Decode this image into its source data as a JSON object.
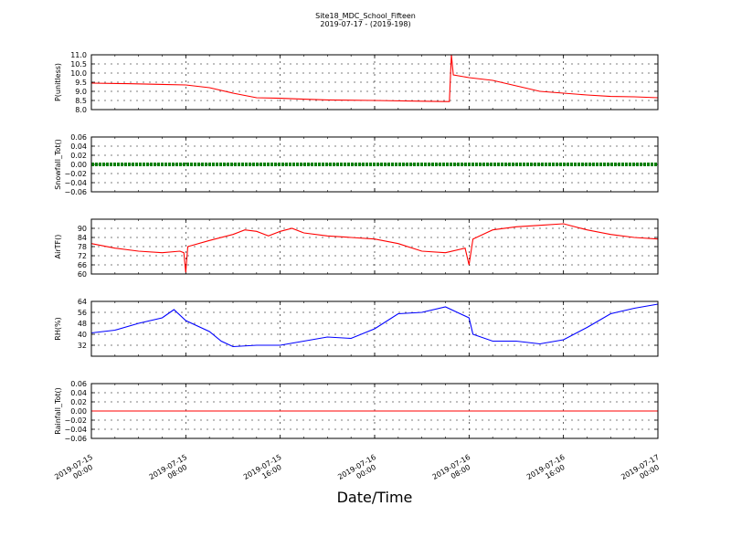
{
  "figure": {
    "title": "Site18_MDC_School_Fifteen",
    "subtitle": "2019-07-17 - (2019-198)",
    "xlabel": "Date/Time"
  },
  "chart_data": {
    "type": "line",
    "x_range": [
      "2019-07-15 00:00",
      "2019-07-17 00:00"
    ],
    "x_ticks": [
      {
        "value": "2019-07-15 00:00",
        "line1": "2019-07-15",
        "line2": "00:00"
      },
      {
        "value": "2019-07-15 08:00",
        "line1": "2019-07-15",
        "line2": "08:00"
      },
      {
        "value": "2019-07-15 16:00",
        "line1": "2019-07-15",
        "line2": "16:00"
      },
      {
        "value": "2019-07-16 00:00",
        "line1": "2019-07-16",
        "line2": "00:00"
      },
      {
        "value": "2019-07-16 08:00",
        "line1": "2019-07-16",
        "line2": "08:00"
      },
      {
        "value": "2019-07-16 16:00",
        "line1": "2019-07-16",
        "line2": "16:00"
      },
      {
        "value": "2019-07-17 00:00",
        "line1": "2019-07-17",
        "line2": "00:00"
      }
    ],
    "grid": true,
    "panels": [
      {
        "ylabel": "P(unitless)",
        "ylim": [
          8.0,
          11.0
        ],
        "yticks": [
          "8.0",
          "8.5",
          "9.0",
          "9.5",
          "10.0",
          "10.5",
          "11.0"
        ],
        "color": "#ff0000",
        "x": [
          "2019-07-15 00:00",
          "2019-07-15 03:00",
          "2019-07-15 06:00",
          "2019-07-15 08:00",
          "2019-07-15 10:00",
          "2019-07-15 12:00",
          "2019-07-15 14:00",
          "2019-07-15 16:00",
          "2019-07-15 18:00",
          "2019-07-15 20:00",
          "2019-07-16 00:00",
          "2019-07-16 04:00",
          "2019-07-16 06:00",
          "2019-07-16 06:20",
          "2019-07-16 06:30",
          "2019-07-16 06:40",
          "2019-07-16 08:00",
          "2019-07-16 10:00",
          "2019-07-16 12:00",
          "2019-07-16 14:00",
          "2019-07-16 16:00",
          "2019-07-16 18:00",
          "2019-07-16 20:00",
          "2019-07-16 22:00",
          "2019-07-17 00:00"
        ],
        "values": [
          9.45,
          9.42,
          9.38,
          9.35,
          9.2,
          8.9,
          8.65,
          8.62,
          8.57,
          8.53,
          8.5,
          8.46,
          8.44,
          8.44,
          11.0,
          9.9,
          9.75,
          9.6,
          9.3,
          9.0,
          8.9,
          8.8,
          8.72,
          8.7,
          8.65
        ]
      },
      {
        "ylabel": "Snowfall_Tot()",
        "ylim": [
          -0.06,
          0.06
        ],
        "yticks": [
          "−0.06",
          "−0.04",
          "−0.02",
          "0.00",
          "0.02",
          "0.04",
          "0.06"
        ],
        "color": "#008000",
        "marker": "dots",
        "x": [
          "2019-07-15 00:00",
          "2019-07-17 00:00"
        ],
        "values": [
          0.0,
          0.0
        ]
      },
      {
        "ylabel": "AirTF()",
        "ylim": [
          60,
          96
        ],
        "yticks": [
          "60",
          "66",
          "72",
          "78",
          "84",
          "90"
        ],
        "color": "#ff0000",
        "x": [
          "2019-07-15 00:00",
          "2019-07-15 02:00",
          "2019-07-15 04:00",
          "2019-07-15 06:00",
          "2019-07-15 07:30",
          "2019-07-15 07:50",
          "2019-07-15 08:00",
          "2019-07-15 08:10",
          "2019-07-15 10:00",
          "2019-07-15 12:00",
          "2019-07-15 13:00",
          "2019-07-15 14:00",
          "2019-07-15 15:00",
          "2019-07-15 16:00",
          "2019-07-15 17:00",
          "2019-07-15 18:00",
          "2019-07-15 20:00",
          "2019-07-15 22:00",
          "2019-07-16 00:00",
          "2019-07-16 02:00",
          "2019-07-16 04:00",
          "2019-07-16 06:00",
          "2019-07-16 07:40",
          "2019-07-16 08:00",
          "2019-07-16 08:20",
          "2019-07-16 10:00",
          "2019-07-16 12:00",
          "2019-07-16 14:00",
          "2019-07-16 16:00",
          "2019-07-16 18:00",
          "2019-07-16 20:00",
          "2019-07-16 22:00",
          "2019-07-17 00:00"
        ],
        "values": [
          80,
          77,
          75,
          74,
          75,
          74,
          61,
          78,
          82,
          86,
          89,
          88,
          85,
          88,
          90,
          87,
          85,
          84,
          83,
          80,
          75,
          74,
          77,
          66,
          83,
          89,
          91,
          92,
          93,
          89,
          86,
          84,
          83
        ]
      },
      {
        "ylabel": "RH(%)",
        "ylim": [
          24,
          64
        ],
        "yticks": [
          "32",
          "40",
          "48",
          "56",
          "64"
        ],
        "color": "#0000ff",
        "x": [
          "2019-07-15 00:00",
          "2019-07-15 02:00",
          "2019-07-15 04:00",
          "2019-07-15 06:00",
          "2019-07-15 07:00",
          "2019-07-15 08:00",
          "2019-07-15 10:00",
          "2019-07-15 11:00",
          "2019-07-15 12:00",
          "2019-07-15 14:00",
          "2019-07-15 16:00",
          "2019-07-15 18:00",
          "2019-07-15 20:00",
          "2019-07-15 22:00",
          "2019-07-16 00:00",
          "2019-07-16 02:00",
          "2019-07-16 04:00",
          "2019-07-16 06:00",
          "2019-07-16 07:00",
          "2019-07-16 08:00",
          "2019-07-16 08:20",
          "2019-07-16 10:00",
          "2019-07-16 12:00",
          "2019-07-16 14:00",
          "2019-07-16 16:00",
          "2019-07-16 18:00",
          "2019-07-16 20:00",
          "2019-07-16 22:00",
          "2019-07-17 00:00"
        ],
        "values": [
          41,
          43,
          48,
          52,
          58,
          50,
          42,
          35,
          31,
          32,
          32,
          35,
          38,
          37,
          44,
          55,
          56,
          60,
          56,
          52,
          40,
          35,
          35,
          33,
          36,
          45,
          55,
          59,
          62
        ]
      },
      {
        "ylabel": "Rainfall_Tot()",
        "ylim": [
          -0.06,
          0.06
        ],
        "yticks": [
          "−0.06",
          "−0.04",
          "−0.02",
          "0.00",
          "0.02",
          "0.04",
          "0.06"
        ],
        "color": "#ff0000",
        "x": [
          "2019-07-15 00:00",
          "2019-07-17 00:00"
        ],
        "values": [
          0.0,
          0.0
        ]
      }
    ]
  }
}
